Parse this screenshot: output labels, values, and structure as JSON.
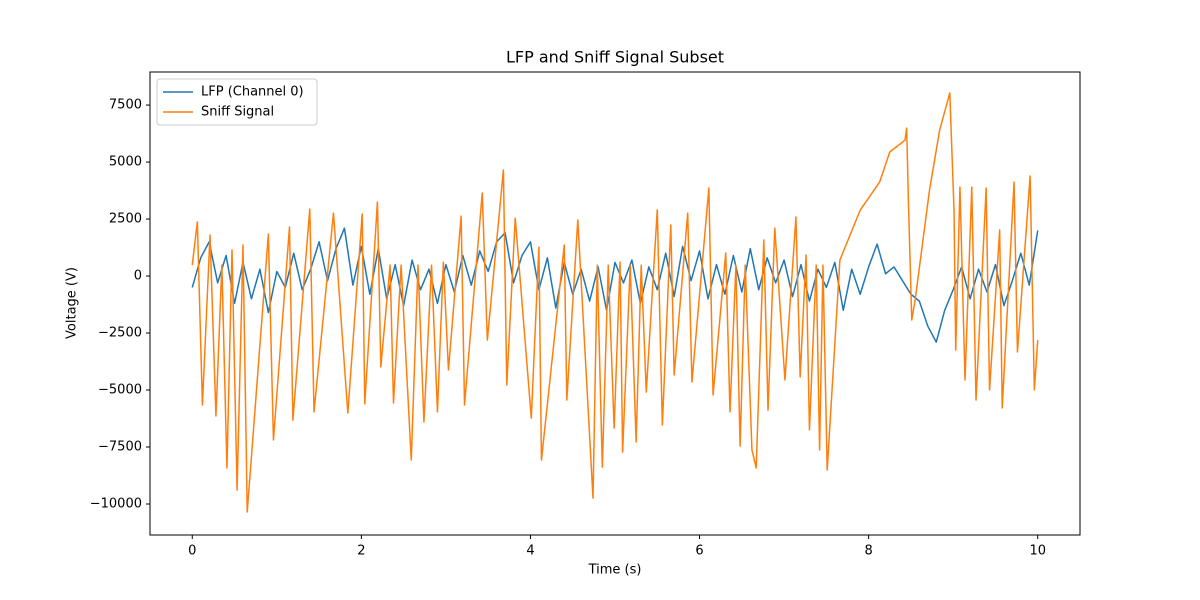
{
  "chart_data": {
    "type": "line",
    "title": "LFP and Sniff Signal Subset",
    "x_label": "Time (s)",
    "y_label": "Voltage (V)",
    "xlim": [
      -0.5,
      10.5
    ],
    "ylim": [
      -11360,
      8950
    ],
    "xticks": [
      0,
      2,
      4,
      6,
      8,
      10
    ],
    "yticks": [
      {
        "value": -10000,
        "label": "−10000"
      },
      {
        "value": -7500,
        "label": "−7500"
      },
      {
        "value": -5000,
        "label": "−5000"
      },
      {
        "value": -2500,
        "label": "−2500"
      },
      0,
      2500,
      5000,
      7500
    ],
    "legend": "upper left",
    "series": [
      {
        "name": "LFP (Channel 0)",
        "color": "#1f77b4",
        "x": [
          0,
          0.1,
          0.2,
          0.3,
          0.4,
          0.5,
          0.6,
          0.7,
          0.8,
          0.9,
          1.0,
          1.1,
          1.2,
          1.3,
          1.4,
          1.5,
          1.6,
          1.7,
          1.8,
          1.9,
          2.0,
          2.1,
          2.2,
          2.3,
          2.4,
          2.5,
          2.6,
          2.7,
          2.8,
          2.9,
          3.0,
          3.1,
          3.2,
          3.3,
          3.4,
          3.5,
          3.6,
          3.7,
          3.8,
          3.9,
          4.0,
          4.1,
          4.2,
          4.3,
          4.4,
          4.5,
          4.6,
          4.7,
          4.8,
          4.9,
          5.0,
          5.1,
          5.2,
          5.3,
          5.4,
          5.5,
          5.6,
          5.7,
          5.8,
          5.9,
          6.0,
          6.1,
          6.2,
          6.3,
          6.4,
          6.5,
          6.6,
          6.7,
          6.8,
          6.9,
          7.0,
          7.1,
          7.2,
          7.3,
          7.4,
          7.5,
          7.6,
          7.7,
          7.8,
          7.9,
          8.0,
          8.1,
          8.2,
          8.3,
          8.4,
          8.5,
          8.6,
          8.7,
          8.8,
          8.9,
          9.0,
          9.1,
          9.2,
          9.3,
          9.4,
          9.5,
          9.6,
          9.7,
          9.8,
          9.9,
          10.0
        ],
        "values": [
          -500,
          800,
          1500,
          -300,
          900,
          -1200,
          600,
          -1000,
          300,
          -1600,
          200,
          -500,
          1000,
          -600,
          300,
          1500,
          -200,
          1200,
          2100,
          -400,
          1300,
          -800,
          1200,
          -1000,
          500,
          -1300,
          700,
          -600,
          300,
          -1200,
          500,
          -700,
          900,
          -400,
          1100,
          200,
          1500,
          1900,
          -300,
          900,
          1500,
          -600,
          800,
          -1400,
          600,
          -800,
          300,
          -1100,
          400,
          -1500,
          600,
          -300,
          700,
          -1200,
          400,
          -600,
          1000,
          -900,
          1300,
          -200,
          1100,
          -1000,
          500,
          -800,
          900,
          -700,
          1200,
          -600,
          800,
          -300,
          700,
          -900,
          500,
          -1100,
          300,
          -500,
          600,
          -1500,
          300,
          -800,
          400,
          1400,
          100,
          400,
          -200,
          -800,
          -1100,
          -2200,
          -2900,
          -1500,
          -600,
          400,
          -1000,
          300,
          -700,
          500,
          -1300,
          -200,
          1000,
          -400,
          2000
        ]
      },
      {
        "name": "Sniff Signal",
        "color": "#ff7f0e",
        "x": [
          0,
          0.06,
          0.12,
          0.21,
          0.28,
          0.35,
          0.41,
          0.47,
          0.53,
          0.6,
          0.65,
          0.9,
          0.96,
          1.15,
          1.19,
          1.39,
          1.44,
          1.67,
          1.84,
          2.01,
          2.04,
          2.19,
          2.23,
          2.34,
          2.38,
          2.47,
          2.59,
          2.67,
          2.74,
          2.83,
          2.9,
          2.97,
          3.03,
          3.18,
          3.22,
          3.43,
          3.49,
          3.68,
          3.72,
          3.82,
          4.01,
          4.1,
          4.13,
          4.4,
          4.43,
          4.56,
          4.74,
          4.79,
          4.85,
          4.92,
          4.99,
          5.06,
          5.09,
          5.18,
          5.25,
          5.31,
          5.37,
          5.5,
          5.56,
          5.66,
          5.7,
          5.86,
          5.91,
          6.11,
          6.16,
          6.31,
          6.36,
          6.43,
          6.48,
          6.54,
          6.62,
          6.67,
          6.76,
          6.81,
          6.89,
          7.01,
          7.14,
          7.19,
          7.26,
          7.3,
          7.38,
          7.42,
          7.46,
          7.51,
          7.66,
          7.9,
          8.13,
          8.25,
          8.43,
          8.45,
          8.47,
          8.51,
          8.55,
          8.72,
          8.84,
          8.96,
          9.01,
          9.03,
          9.08,
          9.14,
          9.22,
          9.27,
          9.39,
          9.43,
          9.55,
          9.58,
          9.72,
          9.76,
          9.91,
          9.96,
          10.0
        ],
        "values": [
          480,
          2370,
          -5660,
          1800,
          -6140,
          480,
          -8420,
          1140,
          -9390,
          1360,
          -10350,
          1840,
          -7190,
          2150,
          -6320,
          2940,
          -5960,
          2760,
          -6010,
          2720,
          -5610,
          3250,
          -3990,
          480,
          -5570,
          480,
          -8070,
          480,
          -6400,
          480,
          -5960,
          610,
          -4120,
          2630,
          -5660,
          3640,
          -2810,
          4650,
          -4780,
          2540,
          -6230,
          1270,
          -8070,
          1360,
          -5440,
          2460,
          -9740,
          480,
          -8380,
          480,
          -6670,
          610,
          -7720,
          480,
          -7280,
          480,
          -5090,
          2900,
          -6540,
          2240,
          -4340,
          2760,
          -4650,
          3860,
          -5220,
          1010,
          -5960,
          480,
          -7460,
          480,
          -7630,
          -8420,
          1580,
          -5880,
          2100,
          -4560,
          2590,
          -4430,
          920,
          -6750,
          480,
          -7630,
          480,
          -8510,
          700,
          2890,
          4120,
          5440,
          5960,
          6490,
          3330,
          -1930,
          -1050,
          3770,
          6400,
          8030,
          2890,
          -3250,
          3900,
          -4560,
          3900,
          -5440,
          3860,
          -5000,
          2020,
          -5790,
          4120,
          -3330,
          4390,
          -5000,
          -2810
        ]
      }
    ]
  }
}
